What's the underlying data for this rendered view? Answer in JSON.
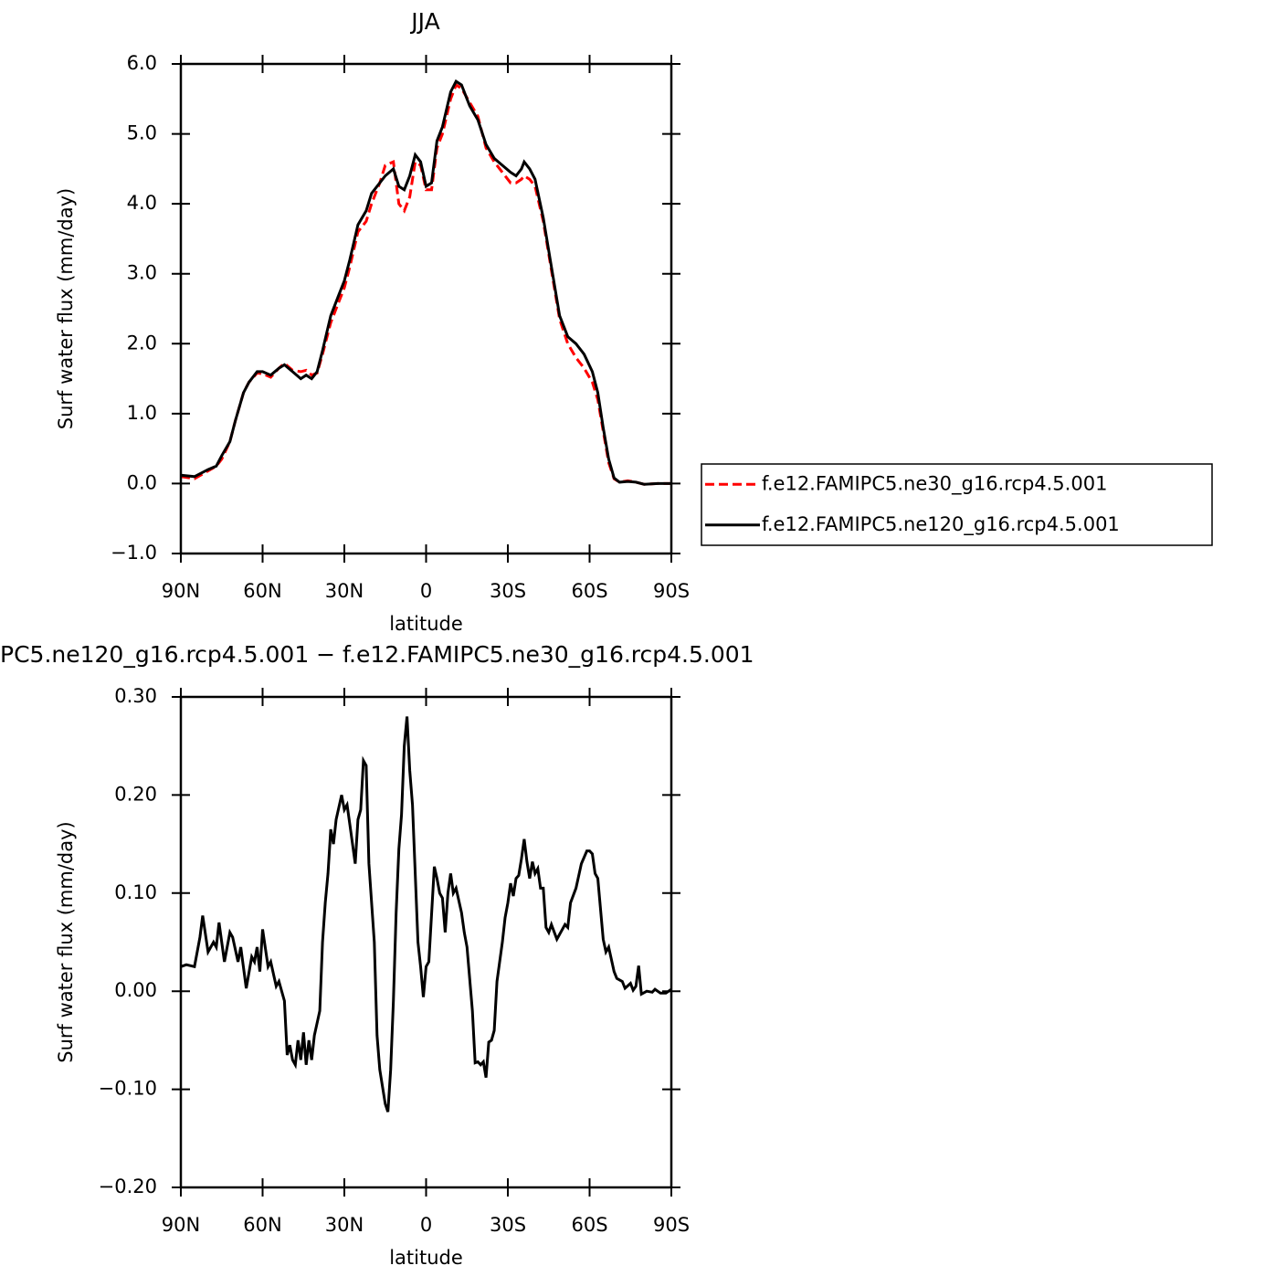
{
  "chart_data": [
    {
      "type": "line",
      "title": "JJA",
      "xlabel": "latitude",
      "ylabel": "Surf water flux (mm/day)",
      "xlim": [
        90,
        -90
      ],
      "xticks": [
        {
          "value": 90,
          "label": "90N"
        },
        {
          "value": 60,
          "label": "60N"
        },
        {
          "value": 30,
          "label": "30N"
        },
        0,
        {
          "value": -30,
          "label": "30S"
        },
        {
          "value": -60,
          "label": "60S"
        },
        {
          "value": -90,
          "label": "90S"
        }
      ],
      "ylim": [
        -1,
        6
      ],
      "yticks": [
        {
          "value": -1,
          "label": "−1.0"
        },
        {
          "value": 0,
          "label": "0.0"
        },
        {
          "value": 1,
          "label": "1.0"
        },
        {
          "value": 2,
          "label": "2.0"
        },
        {
          "value": 3,
          "label": "3.0"
        },
        {
          "value": 4,
          "label": "4.0"
        },
        {
          "value": 5,
          "label": "5.0"
        },
        {
          "value": 6,
          "label": "6.0"
        }
      ],
      "legend": "right",
      "x": [
        90,
        85,
        80,
        77,
        75,
        72,
        70,
        67,
        65,
        62,
        60,
        57,
        54,
        52,
        49,
        46,
        44,
        42,
        40,
        38,
        35,
        32,
        30,
        28,
        25,
        22,
        20,
        17,
        15,
        12,
        10,
        8,
        6,
        4,
        2,
        0,
        -2,
        -4,
        -6,
        -9,
        -11,
        -13,
        -16,
        -19,
        -22,
        -25,
        -28,
        -31,
        -33,
        -35,
        -36,
        -38,
        -40,
        -43,
        -46,
        -49,
        -52,
        -55,
        -58,
        -61,
        -63,
        -65,
        -67,
        -69,
        -71,
        -74,
        -77,
        -80,
        -85,
        -90
      ],
      "series": [
        {
          "name": "f.e12.FAMIPC5.ne30_g16.rcp4.5.001",
          "color": "#ff0000",
          "style": "dashed",
          "values": [
            0.1,
            0.07,
            0.18,
            0.25,
            0.35,
            0.6,
            0.9,
            1.3,
            1.45,
            1.58,
            1.57,
            1.52,
            1.65,
            1.72,
            1.62,
            1.6,
            1.62,
            1.55,
            1.58,
            1.85,
            2.3,
            2.6,
            2.8,
            3.1,
            3.6,
            3.75,
            4.0,
            4.3,
            4.55,
            4.6,
            4.0,
            3.9,
            4.1,
            4.6,
            4.55,
            4.2,
            4.2,
            4.8,
            5.0,
            5.5,
            5.7,
            5.65,
            5.45,
            5.25,
            4.8,
            4.6,
            4.45,
            4.3,
            4.3,
            4.35,
            4.4,
            4.35,
            4.25,
            3.75,
            3.05,
            2.35,
            2.0,
            1.8,
            1.65,
            1.45,
            1.2,
            0.75,
            0.3,
            0.07,
            0.02,
            0.04,
            0.02,
            -0.01,
            0.0,
            0.0
          ]
        },
        {
          "name": "f.e12.FAMIPC5.ne120_g16.rcp4.5.001",
          "color": "#000000",
          "style": "solid",
          "values": [
            0.12,
            0.1,
            0.2,
            0.25,
            0.4,
            0.6,
            0.9,
            1.3,
            1.45,
            1.6,
            1.6,
            1.55,
            1.65,
            1.7,
            1.6,
            1.5,
            1.55,
            1.5,
            1.6,
            1.9,
            2.4,
            2.7,
            2.9,
            3.2,
            3.7,
            3.9,
            4.15,
            4.3,
            4.4,
            4.5,
            4.25,
            4.2,
            4.4,
            4.7,
            4.6,
            4.25,
            4.3,
            4.9,
            5.1,
            5.6,
            5.75,
            5.7,
            5.4,
            5.2,
            4.85,
            4.65,
            4.55,
            4.45,
            4.4,
            4.5,
            4.6,
            4.5,
            4.35,
            3.8,
            3.1,
            2.4,
            2.1,
            2.0,
            1.85,
            1.6,
            1.3,
            0.8,
            0.35,
            0.08,
            0.02,
            0.03,
            0.02,
            -0.01,
            0.0,
            0.0
          ]
        }
      ]
    },
    {
      "type": "line",
      "title": "PC5.ne120_g16.rcp4.5.001 − f.e12.FAMIPC5.ne30_g16.rcp4.5.001",
      "xlabel": "latitude",
      "ylabel": "Surf water flux (mm/day)",
      "xlim": [
        90,
        -90
      ],
      "xticks": [
        {
          "value": 90,
          "label": "90N"
        },
        {
          "value": 60,
          "label": "60N"
        },
        {
          "value": 30,
          "label": "30N"
        },
        0,
        {
          "value": -30,
          "label": "30S"
        },
        {
          "value": -60,
          "label": "60S"
        },
        {
          "value": -90,
          "label": "90S"
        }
      ],
      "ylim": [
        -0.2,
        0.3
      ],
      "yticks": [
        {
          "value": -0.2,
          "label": "−0.20"
        },
        {
          "value": -0.1,
          "label": "−0.10"
        },
        {
          "value": 0,
          "label": "0.00"
        },
        {
          "value": 0.1,
          "label": "0.10"
        },
        {
          "value": 0.2,
          "label": "0.20"
        },
        {
          "value": 0.3,
          "label": "0.30"
        }
      ],
      "color": "#000000",
      "x": [
        90,
        88,
        85,
        83,
        82,
        80,
        78,
        77,
        76,
        74,
        72,
        71,
        69,
        68,
        66,
        64,
        63,
        62,
        61,
        60,
        58,
        57,
        55,
        54,
        52,
        51,
        50,
        49,
        48,
        47,
        46,
        45,
        44,
        43,
        42,
        41,
        39,
        38,
        37,
        36,
        35,
        34,
        33,
        31,
        30,
        29,
        28,
        26,
        25,
        24,
        23,
        22,
        21,
        19,
        18,
        17,
        15,
        14,
        13,
        12,
        11,
        10,
        9,
        8,
        7,
        6,
        5,
        4,
        3,
        2,
        1,
        0,
        -1,
        -3,
        -4,
        -5,
        -6,
        -7,
        -8,
        -9,
        -10,
        -11,
        -13,
        -14,
        -15,
        -17,
        -18,
        -19,
        -20,
        -21,
        -22,
        -23,
        -24,
        -25,
        -26,
        -28,
        -29,
        -30,
        -31,
        -32,
        -33,
        -34,
        -35,
        -36,
        -37,
        -38,
        -39,
        -40,
        -41,
        -42,
        -43,
        -44,
        -45,
        -46,
        -48,
        -49,
        -51,
        -52,
        -53,
        -55,
        -57,
        -59,
        -60,
        -61,
        -62,
        -63,
        -65,
        -66,
        -67,
        -69,
        -70,
        -72,
        -73,
        -75,
        -76,
        -77,
        -78,
        -79,
        -81,
        -83,
        -84,
        -86,
        -88,
        -90
      ],
      "values": [
        0.025,
        0.027,
        0.025,
        0.055,
        0.077,
        0.04,
        0.05,
        0.045,
        0.07,
        0.03,
        0.06,
        0.055,
        0.03,
        0.045,
        0.003,
        0.035,
        0.03,
        0.045,
        0.02,
        0.063,
        0.025,
        0.03,
        0.005,
        0.01,
        -0.01,
        -0.065,
        -0.055,
        -0.07,
        -0.075,
        -0.05,
        -0.07,
        -0.042,
        -0.075,
        -0.05,
        -0.07,
        -0.045,
        -0.02,
        0.05,
        0.09,
        0.12,
        0.165,
        0.15,
        0.175,
        0.2,
        0.185,
        0.19,
        0.17,
        0.13,
        0.175,
        0.185,
        0.235,
        0.23,
        0.13,
        0.05,
        -0.045,
        -0.08,
        -0.115,
        -0.123,
        -0.08,
        -0.01,
        0.08,
        0.145,
        0.18,
        0.25,
        0.28,
        0.225,
        0.19,
        0.12,
        0.05,
        0.025,
        -0.006,
        0.025,
        0.03,
        0.127,
        0.115,
        0.1,
        0.095,
        0.06,
        0.1,
        0.12,
        0.1,
        0.105,
        0.08,
        0.06,
        0.045,
        -0.02,
        -0.073,
        -0.072,
        -0.075,
        -0.072,
        -0.088,
        -0.052,
        -0.05,
        -0.04,
        0.01,
        0.05,
        0.075,
        0.09,
        0.11,
        0.097,
        0.115,
        0.118,
        0.135,
        0.155,
        0.132,
        0.115,
        0.132,
        0.12,
        0.125,
        0.105,
        0.105,
        0.065,
        0.06,
        0.068,
        0.053,
        0.058,
        0.068,
        0.065,
        0.09,
        0.105,
        0.13,
        0.143,
        0.143,
        0.14,
        0.12,
        0.115,
        0.053,
        0.04,
        0.045,
        0.02,
        0.013,
        0.01,
        0.003,
        0.008,
        0.001,
        0.005,
        0.026,
        -0.003,
        0.0,
        -0.001,
        0.002,
        -0.002,
        -0.002,
        0.002
      ]
    }
  ]
}
